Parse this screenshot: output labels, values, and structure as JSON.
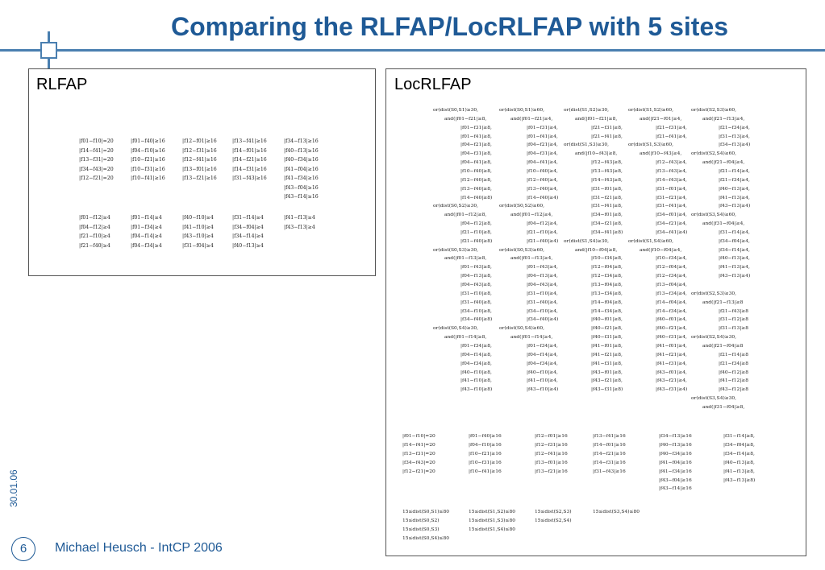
{
  "slide": {
    "title": "Comparing the RLFAP/LocRLFAP with 5 sites",
    "date": "30.01.06",
    "page_number": "6",
    "footer": "Michael Heusch - IntCP 2006"
  },
  "rlfap": {
    "label": "RLFAP",
    "block1": [
      [
        "|f01−f10|=20",
        "|f01−f40|≥16",
        "|f12−f01|≥16",
        "|f13−f41|≥16",
        "|f34−f13|≥16"
      ],
      [
        "|f14−f41|=20",
        "|f04−f10|≥16",
        "|f12−f31|≥16",
        "|f14−f01|≥16",
        "|f40−f13|≥16"
      ],
      [
        "|f13−f31|=20",
        "|f10−f21|≥16",
        "|f12−f41|≥16",
        "|f14−f21|≥16",
        "|f40−f34|≥16"
      ],
      [
        "|f34−f43|=20",
        "|f10−f31|≥16",
        "|f13−f01|≥16",
        "|f14−f31|≥16",
        "|f41−f04|≥16"
      ],
      [
        "|f12−f21|=20",
        "|f10−f41|≥16",
        "|f13−f21|≥16",
        "|f31−f43|≥16",
        "|f41−f34|≥16"
      ],
      [
        "",
        "",
        "",
        "",
        "|f43−f04|≥16"
      ],
      [
        "",
        "",
        "",
        "",
        "|f43−f14|≥16"
      ]
    ],
    "block2": [
      [
        "|f01−f12|≥4",
        "|f01−f14|≥4",
        "|f40−f10|≥4",
        "|f31−f14|≥4",
        "|f41−f13|≥4"
      ],
      [
        "|f04−f12|≥4",
        "|f01−f34|≥4",
        "|f41−f10|≥4",
        "|f34−f04|≥4",
        "|f43−f13|≥4"
      ],
      [
        "|f21−f10|≥4",
        "|f04−f14|≥4",
        "|f43−f10|≥4",
        "|f34−f14|≥4",
        ""
      ],
      [
        "|f21−f40|≥4",
        "|f04−f34|≥4",
        "|f31−f04|≥4",
        "|f40−f13|≥4",
        ""
      ]
    ]
  },
  "locrlfap": {
    "label": "LocRLFAP",
    "or_block": [
      [
        "or(dist(S0,S1)≥30,",
        "or(dist(S0,S1)≥60,",
        "or(dist(S1,S2)≥30,",
        "or(dist(S1,S2)≥60,",
        "or(dist(S2,S3)≥60,"
      ],
      [
        "and(|f01−f21|≥8,",
        "and(|f01−f21|≥4,",
        "and(|f01−f21|≥8,",
        "and(|f21−f01|≥4,",
        "and(|f21−f13|≥4,"
      ],
      [
        "|f01−f31|≥8,",
        "|f01−f31|≥4,",
        "|f21−f31|≥8,",
        "|f21−f31|≥4,",
        "|f21−f34|≥4,"
      ],
      [
        "|f01−f41|≥8,",
        "|f01−f41|≥4,",
        "|f21−f41|≥8,",
        "|f21−f41|≥4,",
        "|f31−f13|≥4,"
      ],
      [
        "|f04−f21|≥8,",
        "|f04−f21|≥4,",
        "or(dist(S1,S3)≥30,",
        "or(dist(S1,S3)≥60,",
        "|f34−f13|≥4)"
      ],
      [
        "|f04−f31|≥8,",
        "|f04−f31|≥4,",
        "and(|f10−f43|≥8,",
        "and(|f10−f43|≥4,",
        "or(dist(S2,S4)≥60,"
      ],
      [
        "|f04−f41|≥8,",
        "|f04−f41|≥4,",
        "|f12−f43|≥8,",
        "|f12−f43|≥4,",
        "and(|f21−f04|≥4,"
      ],
      [
        "|f10−f40|≥8,",
        "|f10−f40|≥4,",
        "|f13−f43|≥8,",
        "|f13−f43|≥4,",
        "|f21−f14|≥4,"
      ],
      [
        "|f12−f40|≥8,",
        "|f12−f40|≥4,",
        "|f14−f43|≥8,",
        "|f14−f43|≥4,",
        "|f21−f34|≥4,"
      ],
      [
        "|f13−f40|≥8,",
        "|f13−f40|≥4,",
        "|f31−f01|≥8,",
        "|f31−f01|≥4,",
        "|f40−f13|≥4,"
      ],
      [
        "|f14−f40|≥8)",
        "|f14−f40|≥4)",
        "|f31−f21|≥8,",
        "|f31−f21|≥4,",
        "|f41−f13|≥4,"
      ],
      [
        "or(dist(S0,S2)≥30,",
        "or(dist(S0,S2)≥60,",
        "|f31−f41|≥8,",
        "|f31−f41|≥4,",
        "|f43−f13|≥4)"
      ],
      [
        "and(|f01−f12|≥8,",
        "and(|f01−f12|≥4,",
        "|f34−f01|≥8,",
        "|f34−f01|≥4,",
        "or(dist(S3,S4)≥60,"
      ],
      [
        "|f04−f12|≥8,",
        "|f04−f12|≥4,",
        "|f34−f21|≥8,",
        "|f34−f21|≥4,",
        "and(|f31−f04|≥4,"
      ],
      [
        "|f21−f10|≥8,",
        "|f21−f10|≥4,",
        "|f34−f41|≥8)",
        "|f34−f41|≥4)",
        "|f31−f14|≥4,"
      ],
      [
        "|f21−f40|≥8)",
        "|f21−f40|≥4)",
        "or(dist(S1,S4)≥30,",
        "or(dist(S1,S4)≥60,",
        "|f34−f04|≥4,"
      ],
      [
        "or(dist(S0,S3)≥30,",
        "or(dist(S0,S3)≥60,",
        "and(|f10−f04|≥8,",
        "and(|f10−f04|≥4,",
        "|f34−f14|≥4,"
      ],
      [
        "and(|f01−f13|≥8,",
        "and(|f01−f13|≥4,",
        "|f10−f34|≥8,",
        "|f10−f34|≥4,",
        "|f40−f13|≥4,"
      ],
      [
        "|f01−f43|≥8,",
        "|f01−f43|≥4,",
        "|f12−f04|≥8,",
        "|f12−f04|≥4,",
        "|f41−f13|≥4,"
      ],
      [
        "|f04−f13|≥8,",
        "|f04−f13|≥4,",
        "|f12−f34|≥8,",
        "|f12−f34|≥4,",
        "|f43−f13|≥4)"
      ],
      [
        "|f04−f43|≥8,",
        "|f04−f43|≥4,",
        "|f13−f04|≥8,",
        "|f13−f04|≥4,",
        ""
      ],
      [
        "|f31−f10|≥8,",
        "|f31−f10|≥4,",
        "|f13−f34|≥8,",
        "|f13−f34|≥4,",
        "or(dist(S2,S3)≥30,"
      ],
      [
        "|f31−f40|≥8,",
        "|f31−f40|≥4,",
        "|f14−f04|≥8,",
        "|f14−f04|≥4,",
        "and(|f21−f13|≥8"
      ],
      [
        "|f34−f10|≥8,",
        "|f34−f10|≥4,",
        "|f14−f34|≥8,",
        "|f14−f34|≥4,",
        "|f21−f43|≥8"
      ],
      [
        "|f34−f40|≥8)",
        "|f34−f40|≥4)",
        "|f40−f01|≥8,",
        "|f40−f01|≥4,",
        "|f31−f12|≥8"
      ],
      [
        "or(dist(S0,S4)≥30,",
        "or(dist(S0,S4)≥60,",
        "|f40−f21|≥8,",
        "|f40−f21|≥4,",
        "|f31−f13|≥8"
      ],
      [
        "and(|f01−f14|≥8,",
        "and(|f01−f14|≥4,",
        "|f40−f31|≥8,",
        "|f40−f31|≥4,",
        "or(dist(S2,S4)≥30,"
      ],
      [
        "|f01−f34|≥8,",
        "|f01−f34|≥4,",
        "|f41−f01|≥8,",
        "|f41−f01|≥4,",
        "and(|f21−f04|≥8"
      ],
      [
        "|f04−f14|≥8,",
        "|f04−f14|≥4,",
        "|f41−f21|≥8,",
        "|f41−f21|≥4,",
        "|f21−f14|≥8"
      ],
      [
        "|f04−f34|≥8,",
        "|f04−f34|≥4,",
        "|f41−f31|≥8,",
        "|f41−f31|≥4,",
        "|f21−f34|≥8"
      ],
      [
        "|f40−f10|≥8,",
        "|f40−f10|≥4,",
        "|f43−f01|≥8,",
        "|f43−f01|≥4,",
        "|f40−f12|≥8"
      ],
      [
        "|f41−f10|≥8,",
        "|f41−f10|≥4,",
        "|f43−f21|≥8,",
        "|f43−f21|≥4,",
        "|f41−f12|≥8"
      ],
      [
        "|f43−f10|≥8)",
        "|f43−f10|≥4)",
        "|f43−f31|≥8)",
        "|f43−f31|≥4)",
        "|f43−f12|≥8"
      ],
      [
        "",
        "",
        "",
        "",
        "or(dist(S3,S4)≥30,"
      ],
      [
        "",
        "",
        "",
        "",
        "and(|f31−f04|≥8,"
      ]
    ],
    "abs_block": [
      [
        "|f01−f10|=20",
        "|f01−f40|≥16",
        "|f12−f01|≥16",
        "|f13−f41|≥16",
        "|f34−f13|≥16",
        "|f31−f14|≥8,"
      ],
      [
        "|f14−f41|=20",
        "|f04−f10|≥16",
        "|f12−f31|≥16",
        "|f14−f01|≥16",
        "|f40−f13|≥16",
        "|f34−f04|≥8,"
      ],
      [
        "|f13−f31|=20",
        "|f10−f21|≥16",
        "|f12−f41|≥16",
        "|f14−f21|≥16",
        "|f40−f34|≥16",
        "|f34−f14|≥8,"
      ],
      [
        "|f34−f43|=20",
        "|f10−f31|≥16",
        "|f13−f01|≥16",
        "|f14−f31|≥16",
        "|f41−f04|≥16",
        "|f40−f13|≥8,"
      ],
      [
        "|f12−f21|=20",
        "|f10−f41|≥16",
        "|f13−f21|≥16",
        "|f31−f43|≥16",
        "|f41−f34|≥16",
        "|f41−f13|≥8,"
      ],
      [
        "",
        "",
        "",
        "",
        "|f43−f04|≥16",
        "|f43−f13|≥8)"
      ],
      [
        "",
        "",
        "",
        "",
        "|f43−f14|≥16",
        ""
      ]
    ],
    "dist_block": [
      [
        "15≤dist(S0,S1)≤80",
        "15≤dist(S1,S2)≤80",
        "15≤dist(S2,S3)",
        "15≤dist(S3,S4)≤80"
      ],
      [
        "15≤dist(S0,S2)",
        "15≤dist(S1,S3)≤80",
        "15≤dist(S2,S4)",
        ""
      ],
      [
        "15≤dist(S0,S3)",
        "15≤dist(S1,S4)≤80",
        "",
        ""
      ],
      [
        "15≤dist(S0,S4)≤80",
        "",
        "",
        ""
      ]
    ]
  }
}
